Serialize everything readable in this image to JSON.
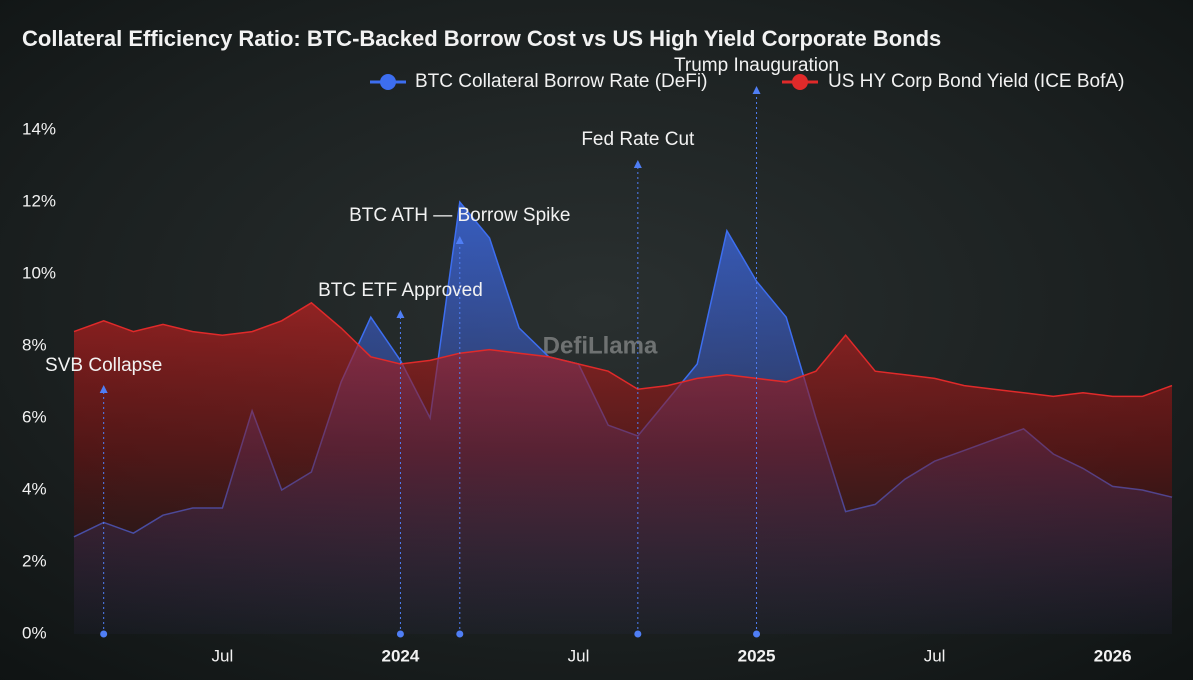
{
  "chart_data": {
    "type": "area",
    "title": "Collateral Efficiency Ratio: BTC-Backed Borrow Cost vs US High Yield Corporate Bonds",
    "watermark": "DefiLlama",
    "legend": "top",
    "x": [
      "2023-02",
      "2023-03",
      "2023-04",
      "2023-05",
      "2023-06",
      "2023-07",
      "2023-08",
      "2023-09",
      "2023-10",
      "2023-11",
      "2023-12",
      "2024-01",
      "2024-02",
      "2024-03",
      "2024-04",
      "2024-05",
      "2024-06",
      "2024-07",
      "2024-08",
      "2024-09",
      "2024-10",
      "2024-11",
      "2024-12",
      "2025-01",
      "2025-02",
      "2025-03",
      "2025-04",
      "2025-05",
      "2025-06",
      "2025-07",
      "2025-08",
      "2025-09",
      "2025-10",
      "2025-11",
      "2025-12",
      "2026-01",
      "2026-02",
      "2026-03"
    ],
    "series": [
      {
        "name": "BTC Collateral Borrow Rate (DeFi)",
        "color": "#3d6ef0",
        "values": [
          2.7,
          3.1,
          2.8,
          3.3,
          3.5,
          3.5,
          6.2,
          4.0,
          4.5,
          7.0,
          8.8,
          7.6,
          6.0,
          12.0,
          11.0,
          8.5,
          7.7,
          7.5,
          5.8,
          5.5,
          6.5,
          7.5,
          11.2,
          9.8,
          8.8,
          6.0,
          3.4,
          3.6,
          4.3,
          4.8,
          5.1,
          5.4,
          5.7,
          5.0,
          4.6,
          4.1,
          4.0,
          3.8
        ]
      },
      {
        "name": "US HY Corp Bond Yield (ICE BofA)",
        "color": "#e02a2a",
        "values": [
          8.4,
          8.7,
          8.4,
          8.6,
          8.4,
          8.3,
          8.4,
          8.7,
          9.2,
          8.5,
          7.7,
          7.5,
          7.6,
          7.8,
          7.9,
          7.8,
          7.7,
          7.5,
          7.3,
          6.8,
          6.9,
          7.1,
          7.2,
          7.1,
          7.0,
          7.3,
          8.3,
          7.3,
          7.2,
          7.1,
          6.9,
          6.8,
          6.7,
          6.6,
          6.7,
          6.6,
          6.6,
          6.9
        ]
      }
    ],
    "annotations": [
      {
        "x": "2023-03",
        "text": "SVB Collapse"
      },
      {
        "x": "2024-01",
        "text": "BTC ETF Approved"
      },
      {
        "x": "2024-03",
        "text": "BTC ATH — Borrow Spike"
      },
      {
        "x": "2024-09",
        "text": "Fed Rate Cut"
      },
      {
        "x": "2025-01",
        "text": "Trump Inauguration"
      }
    ],
    "xlim": [
      "2023-02",
      "2026-03"
    ],
    "xticks": [
      {
        "value": "2023-07",
        "label": "Jul"
      },
      {
        "value": "2024-01",
        "label": "2024"
      },
      {
        "value": "2024-07",
        "label": "Jul"
      },
      {
        "value": "2025-01",
        "label": "2025"
      },
      {
        "value": "2025-07",
        "label": "Jul"
      },
      {
        "value": "2026-01",
        "label": "2026"
      }
    ],
    "ylim": [
      0,
      15.5
    ],
    "yticks": [
      {
        "value": 0,
        "label": "0%"
      },
      {
        "value": 2,
        "label": "2%"
      },
      {
        "value": 4,
        "label": "4%"
      },
      {
        "value": 6,
        "label": "6%"
      },
      {
        "value": 8,
        "label": "8%"
      },
      {
        "value": 10,
        "label": "10%"
      },
      {
        "value": 12,
        "label": "12%"
      },
      {
        "value": 14,
        "label": "14%"
      }
    ],
    "grid": false
  }
}
